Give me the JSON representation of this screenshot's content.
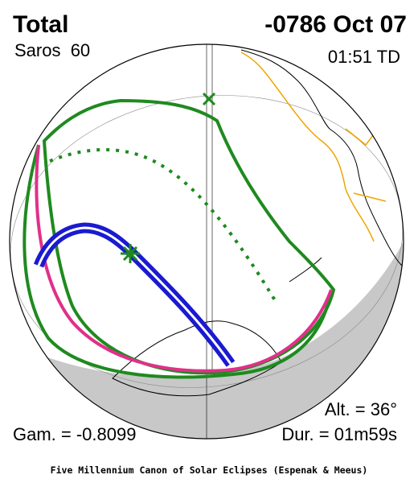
{
  "header": {
    "title": "Total",
    "date": "-0786 Oct 07",
    "saros": "Saros  60",
    "time": "01:51 TD"
  },
  "footer": {
    "altitude": "Alt. = 36°",
    "gamma": "Gam. = -0.8099",
    "duration": "Dur. = 01m59s",
    "credit": "Five Millennium Canon of Solar Eclipses (Espenak & Meeus)"
  }
}
